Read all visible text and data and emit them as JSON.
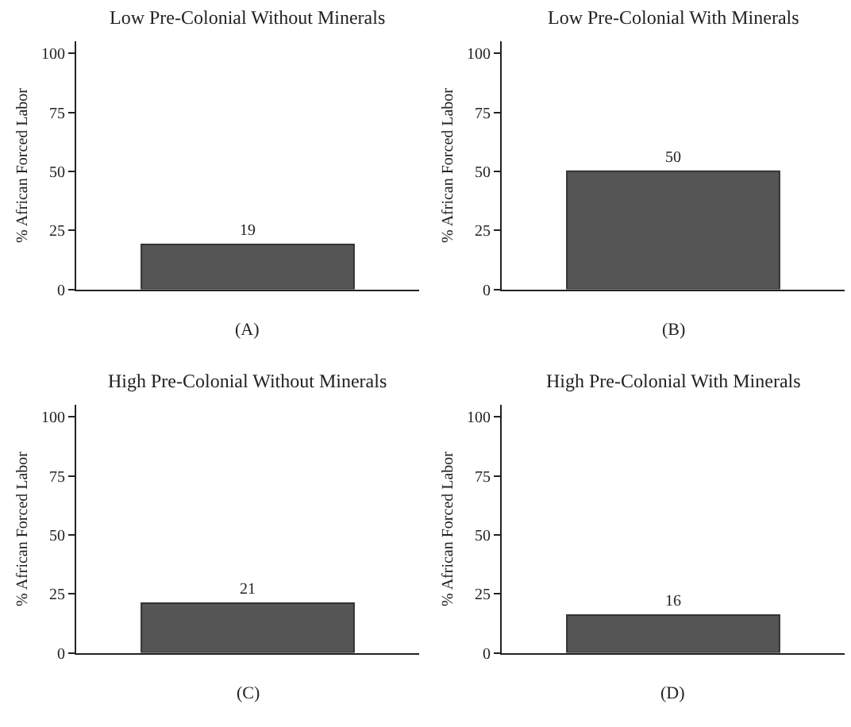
{
  "chart_data": [
    {
      "type": "bar",
      "title": "Low Pre-Colonial Without Minerals",
      "xlabel": "(A)",
      "ylabel": "% African Forced Labor",
      "categories": [
        null
      ],
      "values": [
        19
      ],
      "color": "#555555",
      "ylim": [
        0,
        105
      ],
      "yticks": [
        0,
        25,
        50,
        75,
        100
      ],
      "data_labels": true
    },
    {
      "type": "bar",
      "title": "Low Pre-Colonial With Minerals",
      "xlabel": "(B)",
      "ylabel": "% African Forced Labor",
      "categories": [
        null
      ],
      "values": [
        50
      ],
      "color": "#555555",
      "ylim": [
        0,
        105
      ],
      "yticks": [
        0,
        25,
        50,
        75,
        100
      ],
      "data_labels": true
    },
    {
      "type": "bar",
      "title": "High Pre-Colonial Without Minerals",
      "xlabel": "(C)",
      "ylabel": "% African Forced Labor",
      "categories": [
        null
      ],
      "values": [
        21
      ],
      "color": "#555555",
      "ylim": [
        0,
        105
      ],
      "yticks": [
        0,
        25,
        50,
        75,
        100
      ],
      "data_labels": true
    },
    {
      "type": "bar",
      "title": "High Pre-Colonial With Minerals",
      "xlabel": "(D)",
      "ylabel": "% African Forced Labor",
      "categories": [
        null
      ],
      "values": [
        16
      ],
      "color": "#555555",
      "ylim": [
        0,
        105
      ],
      "yticks": [
        0,
        25,
        50,
        75,
        100
      ],
      "data_labels": true
    }
  ]
}
